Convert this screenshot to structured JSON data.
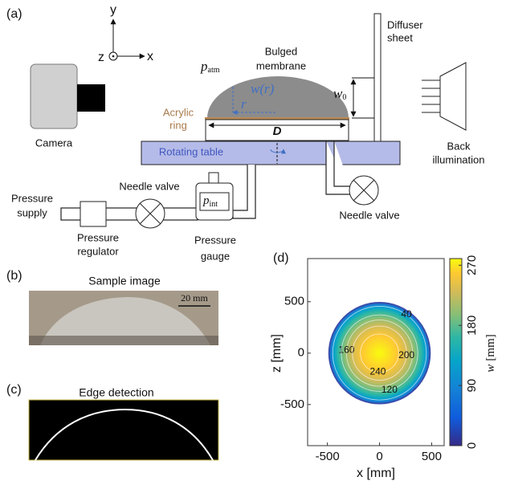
{
  "panel_a": {
    "label": "(a)",
    "axes": {
      "y": "y",
      "z": "z",
      "x": "x"
    },
    "p_atm": {
      "base": "p",
      "sub": "atm"
    },
    "bulged_membrane": [
      "Bulged",
      "membrane"
    ],
    "w_r": "w(r)",
    "r": "r",
    "w0": {
      "base": "w",
      "sub": "0"
    },
    "diffuser_sheet": [
      "Diffuser",
      "sheet"
    ],
    "camera": "Camera",
    "acrylic_ring": [
      "Acrylic",
      "ring"
    ],
    "D": "D",
    "rotating_table": "Rotating table",
    "back_illumination": [
      "Back",
      "illumination"
    ],
    "needle_valve_left": "Needle valve",
    "needle_valve_right": "Needle valve",
    "pressure_supply": [
      "Pressure",
      "supply"
    ],
    "p_int": {
      "base": "p",
      "sub": "int"
    },
    "pressure_regulator": [
      "Pressure",
      "regulator"
    ],
    "pressure_gauge": [
      "Pressure",
      "gauge"
    ]
  },
  "panel_b": {
    "label": "(b)",
    "title": "Sample image",
    "scale_bar": "20 mm"
  },
  "panel_c": {
    "label": "(c)",
    "title": "Edge detection"
  },
  "chart_data": {
    "type": "contour",
    "panel_label": "(d)",
    "xlabel": "x [mm]",
    "ylabel": "z [mm]",
    "xlim": [
      -690,
      620
    ],
    "ylim": [
      -900,
      920
    ],
    "xticks": [
      -500,
      0,
      500
    ],
    "yticks": [
      -500,
      0,
      500
    ],
    "contour_labels": [
      40,
      160,
      200,
      240,
      120
    ],
    "colorbar": {
      "label": {
        "var": "w",
        "unit": "[mm]"
      },
      "clim": [
        0,
        280
      ],
      "ticks": [
        0,
        90,
        180,
        270
      ]
    }
  }
}
